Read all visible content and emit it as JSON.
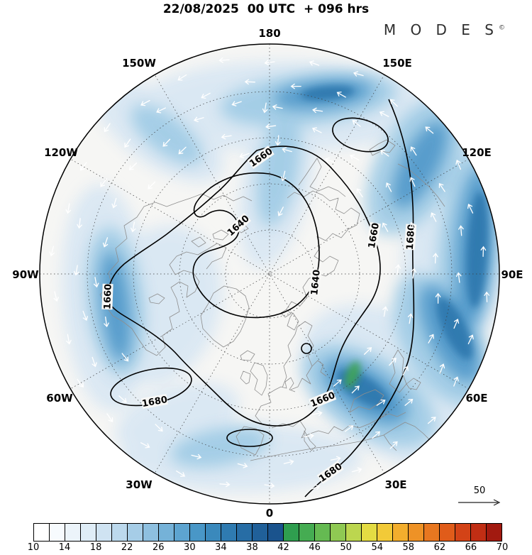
{
  "title": "22/08/2025  00 UTC  + 096 hrs",
  "brand": {
    "name": "M O D E S",
    "mark": "©"
  },
  "map": {
    "meridians": [
      {
        "label": "180"
      },
      {
        "label": "150W"
      },
      {
        "label": "150E"
      },
      {
        "label": "120W"
      },
      {
        "label": "120E"
      },
      {
        "label": "90W"
      },
      {
        "label": "90E"
      },
      {
        "label": "60W"
      },
      {
        "label": "60E"
      },
      {
        "label": "30W"
      },
      {
        "label": "30E"
      },
      {
        "label": "0"
      }
    ]
  },
  "contour_labels": {
    "c1640": "1640",
    "c1660": "1660",
    "c1680": "1680"
  },
  "reference_arrow": {
    "label": "50"
  },
  "colorbar": {
    "min": 10,
    "max": 70,
    "step": 2,
    "ticks": [
      10,
      14,
      18,
      22,
      26,
      30,
      34,
      38,
      42,
      46,
      50,
      54,
      58,
      62,
      66,
      70
    ],
    "colors": [
      "#ffffff",
      "#f7fbfe",
      "#ecf4fa",
      "#dfedf7",
      "#cfe3f2",
      "#bcd9ed",
      "#a6cde7",
      "#8ec0e0",
      "#75b2d8",
      "#5da4d0",
      "#4997c7",
      "#3a89bc",
      "#2f7bb1",
      "#276da5",
      "#206099",
      "#1a538d",
      "#2f9e4f",
      "#45ac52",
      "#65ba52",
      "#8fc953",
      "#bcd64f",
      "#e4dc43",
      "#f2ca38",
      "#f3ae2d",
      "#ee9226",
      "#e87720",
      "#e05c1a",
      "#d34317",
      "#c12e14",
      "#a21a10"
    ]
  },
  "chart_data": {
    "type": "heatmap",
    "subtype": "north-polar-stereographic-weather-map",
    "title": "22/08/2025 00 UTC + 096 hrs",
    "meridian_labels": [
      "180",
      "150W",
      "150E",
      "120W",
      "120E",
      "90W",
      "90E",
      "60W",
      "60E",
      "30W",
      "30E",
      "0"
    ],
    "contour_levels_labeled": [
      1640,
      1660,
      1680
    ],
    "shading_scale_ticks": [
      10,
      14,
      18,
      22,
      26,
      30,
      34,
      38,
      42,
      46,
      50,
      54,
      58,
      62,
      66,
      70
    ],
    "shading_scale_step": 2,
    "reference_vector": 50,
    "legend_position": "bottom",
    "grid": "dashed graticule, meridians every 30 degrees, dashed latitude circles"
  }
}
